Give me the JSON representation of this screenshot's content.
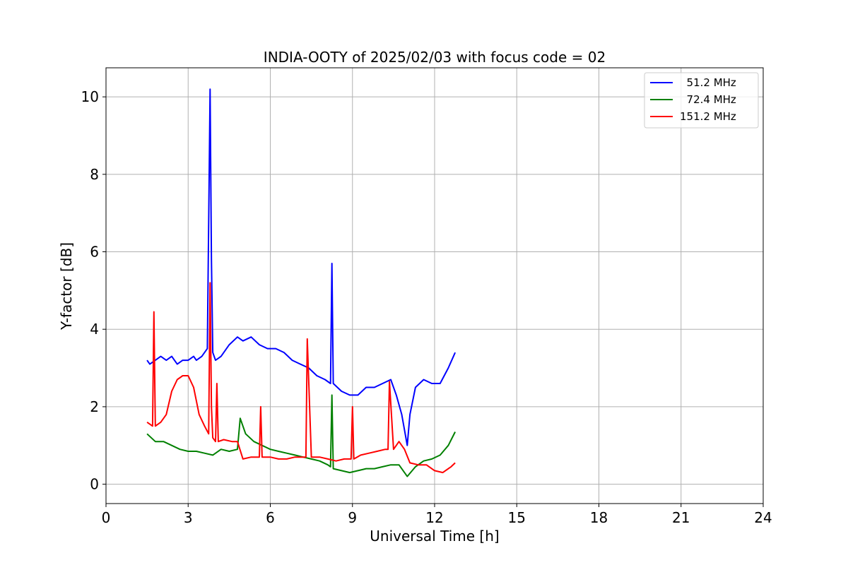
{
  "chart_data": {
    "type": "line",
    "title": "INDIA-OOTY of 2025/02/03 with focus code = 02",
    "xlabel": "Universal Time [h]",
    "ylabel": "Y-factor [dB]",
    "xlim": [
      0,
      24
    ],
    "ylim": [
      -0.5,
      10.75
    ],
    "xticks": [
      0,
      3,
      6,
      9,
      12,
      15,
      18,
      21,
      24
    ],
    "yticks": [
      0,
      2,
      4,
      6,
      8,
      10
    ],
    "grid": true,
    "legend_position": "top-right",
    "series": [
      {
        "name": "  51.2 MHz",
        "color": "#0000ff",
        "x": [
          1.5,
          1.6,
          1.8,
          2.0,
          2.2,
          2.4,
          2.6,
          2.8,
          3.0,
          3.2,
          3.3,
          3.5,
          3.7,
          3.8,
          3.85,
          3.9,
          4.0,
          4.2,
          4.5,
          4.8,
          5.0,
          5.3,
          5.6,
          5.9,
          6.2,
          6.5,
          6.8,
          7.1,
          7.4,
          7.7,
          8.0,
          8.2,
          8.25,
          8.3,
          8.6,
          8.9,
          9.2,
          9.5,
          9.8,
          10.1,
          10.4,
          10.6,
          10.8,
          11.0,
          11.1,
          11.3,
          11.6,
          11.9,
          12.2,
          12.5,
          12.75
        ],
        "y": [
          3.2,
          3.1,
          3.2,
          3.3,
          3.2,
          3.3,
          3.1,
          3.2,
          3.2,
          3.3,
          3.2,
          3.3,
          3.5,
          10.2,
          5.8,
          3.4,
          3.2,
          3.3,
          3.6,
          3.8,
          3.7,
          3.8,
          3.6,
          3.5,
          3.5,
          3.4,
          3.2,
          3.1,
          3.0,
          2.8,
          2.7,
          2.6,
          5.7,
          2.6,
          2.4,
          2.3,
          2.3,
          2.5,
          2.5,
          2.6,
          2.7,
          2.3,
          1.8,
          1.0,
          1.8,
          2.5,
          2.7,
          2.6,
          2.6,
          3.0,
          3.4
        ]
      },
      {
        "name": "  72.4 MHz",
        "color": "#008000",
        "x": [
          1.5,
          1.8,
          2.1,
          2.4,
          2.7,
          3.0,
          3.3,
          3.6,
          3.9,
          4.2,
          4.5,
          4.8,
          4.9,
          5.1,
          5.4,
          5.7,
          6.0,
          6.3,
          6.6,
          6.9,
          7.2,
          7.5,
          7.8,
          8.1,
          8.2,
          8.25,
          8.3,
          8.6,
          8.9,
          9.2,
          9.5,
          9.8,
          10.1,
          10.4,
          10.7,
          11.0,
          11.3,
          11.6,
          11.9,
          12.2,
          12.5,
          12.75
        ],
        "y": [
          1.3,
          1.1,
          1.1,
          1.0,
          0.9,
          0.85,
          0.85,
          0.8,
          0.75,
          0.9,
          0.85,
          0.9,
          1.7,
          1.3,
          1.1,
          1.0,
          0.9,
          0.85,
          0.8,
          0.75,
          0.7,
          0.65,
          0.6,
          0.5,
          0.45,
          2.3,
          0.4,
          0.35,
          0.3,
          0.35,
          0.4,
          0.4,
          0.45,
          0.5,
          0.5,
          0.2,
          0.45,
          0.6,
          0.65,
          0.75,
          1.0,
          1.35
        ]
      },
      {
        "name": "151.2 MHz",
        "color": "#ff0000",
        "x": [
          1.5,
          1.7,
          1.75,
          1.8,
          2.0,
          2.2,
          2.4,
          2.6,
          2.8,
          3.0,
          3.2,
          3.4,
          3.6,
          3.75,
          3.8,
          3.85,
          3.9,
          4.0,
          4.05,
          4.1,
          4.3,
          4.6,
          4.8,
          5.0,
          5.3,
          5.6,
          5.65,
          5.7,
          6.0,
          6.3,
          6.6,
          6.9,
          7.2,
          7.3,
          7.35,
          7.5,
          7.8,
          8.1,
          8.4,
          8.7,
          8.95,
          9.0,
          9.05,
          9.3,
          9.6,
          9.9,
          10.2,
          10.3,
          10.35,
          10.5,
          10.7,
          10.9,
          11.1,
          11.4,
          11.7,
          12.0,
          12.3,
          12.6,
          12.75
        ],
        "y": [
          1.6,
          1.5,
          4.45,
          1.5,
          1.6,
          1.8,
          2.4,
          2.7,
          2.8,
          2.8,
          2.5,
          1.8,
          1.5,
          1.3,
          5.2,
          2.0,
          1.2,
          1.1,
          2.6,
          1.1,
          1.15,
          1.1,
          1.1,
          0.65,
          0.7,
          0.7,
          2.0,
          0.7,
          0.7,
          0.65,
          0.65,
          0.7,
          0.7,
          0.7,
          3.75,
          0.7,
          0.7,
          0.65,
          0.6,
          0.65,
          0.65,
          2.0,
          0.65,
          0.75,
          0.8,
          0.85,
          0.9,
          0.9,
          2.65,
          0.9,
          1.1,
          0.9,
          0.55,
          0.5,
          0.5,
          0.35,
          0.3,
          0.45,
          0.55
        ]
      }
    ]
  }
}
